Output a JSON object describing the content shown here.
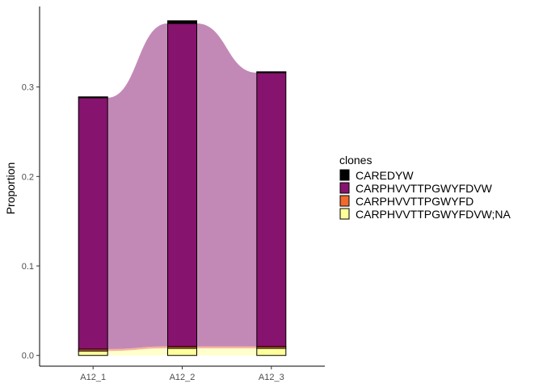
{
  "chart_data": {
    "type": "bar",
    "stacked": true,
    "alluvial": true,
    "categories": [
      "A12_1",
      "A12_2",
      "A12_3"
    ],
    "xlabel": "",
    "ylabel": "Proportion",
    "ylim": [
      -0.012,
      0.39
    ],
    "yticks": [
      0.0,
      0.1,
      0.2,
      0.3
    ],
    "ytick_labels": [
      "0.0",
      "0.1",
      "0.2",
      "0.3"
    ],
    "grid": false,
    "legend": {
      "title": "clones",
      "position": "right"
    },
    "series": [
      {
        "name": "CARPHVVTTPGWYFDVW;NA",
        "color": "#FFFF99",
        "values": [
          0.005,
          0.008,
          0.008
        ]
      },
      {
        "name": "CARPHVVTTPGWYFD",
        "color": "#F06A2E",
        "values": [
          0.002,
          0.002,
          0.002
        ]
      },
      {
        "name": "CARPHVVTTPGWYFDVW",
        "color": "#86136D",
        "values": [
          0.281,
          0.361,
          0.306
        ]
      },
      {
        "name": "CAREDYW",
        "color": "#000000",
        "values": [
          0.001,
          0.003,
          0.001
        ]
      }
    ],
    "legend_order": [
      "CAREDYW",
      "CARPHVVTTPGWYFDVW",
      "CARPHVVTTPGWYFD",
      "CARPHVVTTPGWYFDVW;NA"
    ]
  }
}
